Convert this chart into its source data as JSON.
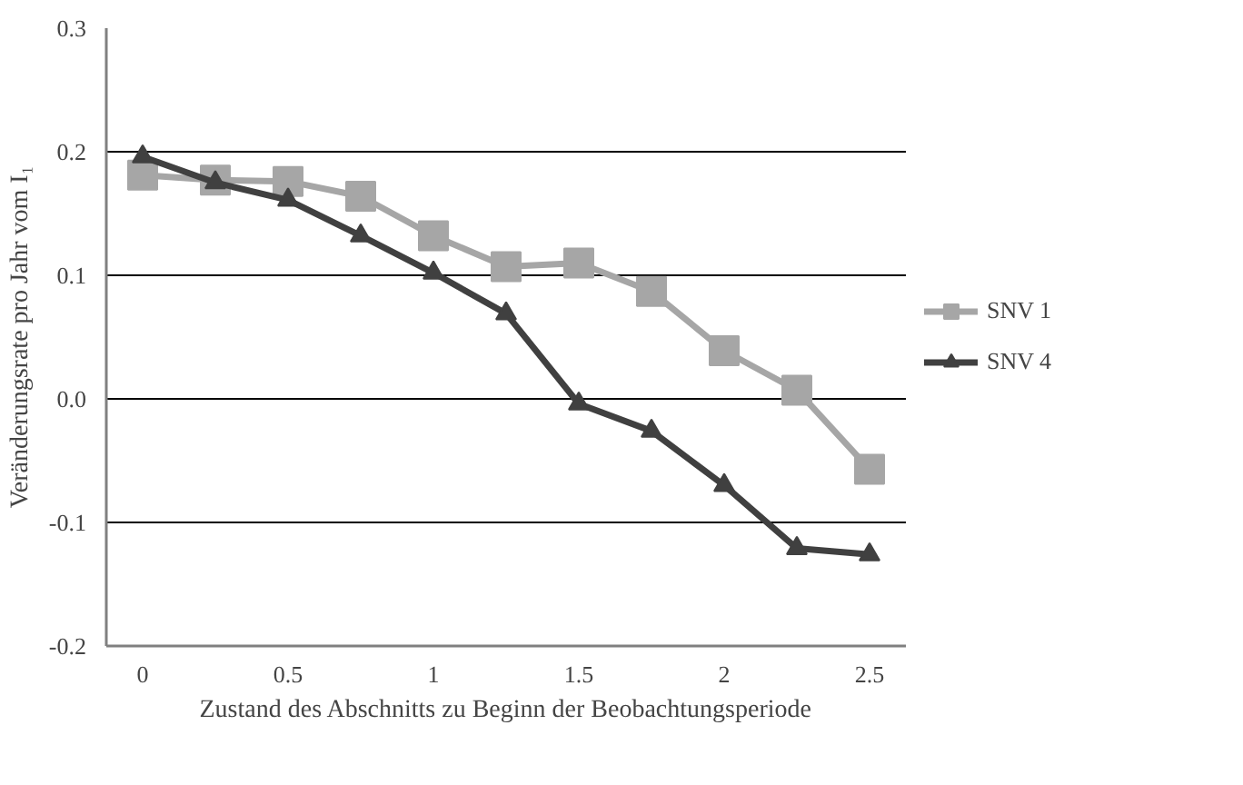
{
  "chart_data": {
    "type": "line",
    "xlabel": "Zustand des Abschnitts zu Beginn der Beobachtungsperiode",
    "ylabel": "Veränderungsrate pro Jahr vom I₁",
    "x": [
      0,
      0.25,
      0.5,
      0.75,
      1,
      1.25,
      1.5,
      1.75,
      2,
      2.25,
      2.5
    ],
    "series": [
      {
        "name": "SNV 1",
        "color": "#a6a6a6",
        "marker": "square",
        "values": [
          0.181,
          0.177,
          0.176,
          0.164,
          0.132,
          0.107,
          0.11,
          0.087,
          0.039,
          0.007,
          -0.057
        ]
      },
      {
        "name": "SNV 4",
        "color": "#404040",
        "marker": "triangle",
        "values": [
          0.196,
          0.175,
          0.161,
          0.132,
          0.102,
          0.069,
          -0.004,
          -0.026,
          -0.07,
          -0.121,
          -0.126
        ]
      }
    ],
    "xlim": [
      -0.125,
      2.625
    ],
    "xticks": [
      0,
      0.5,
      1,
      1.5,
      2,
      2.5
    ],
    "ylim": [
      -0.2,
      0.3
    ],
    "yticks": [
      {
        "value": -0.2,
        "label": "-0.2"
      },
      {
        "value": -0.1,
        "label": "-0.1"
      },
      {
        "value": 0,
        "label": "0.0"
      },
      {
        "value": 0.1,
        "label": "0.1"
      },
      {
        "value": 0.2,
        "label": "0.2"
      },
      {
        "value": 0.3,
        "label": "0.3"
      }
    ],
    "grid": "y",
    "legend": "right",
    "line_style": "solid"
  }
}
